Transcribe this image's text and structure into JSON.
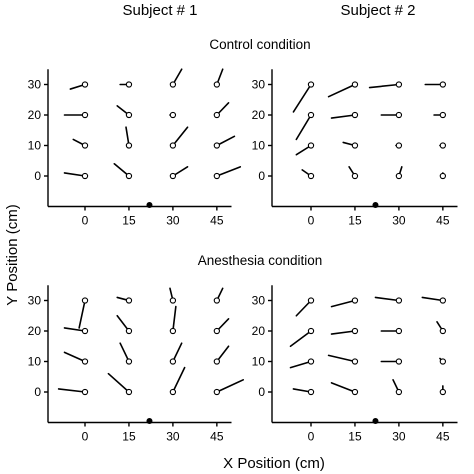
{
  "subjects": [
    "Subject # 1",
    "Subject # 2"
  ],
  "conditions": [
    "Control condition",
    "Anesthesia condition"
  ],
  "x_label": "X Position (cm)",
  "y_label": "Y Position (cm)",
  "x_ticks": [
    "0",
    "15",
    "30",
    "45"
  ],
  "y_ticks": [
    "0",
    "10",
    "20",
    "30"
  ],
  "chart_data": {
    "type": "scatter",
    "description_note": "",
    "x_positions_cm": [
      0,
      15,
      30,
      45
    ],
    "y_positions_cm": [
      0,
      10,
      20,
      30
    ],
    "xlim": [
      -20,
      50
    ],
    "ylim": [
      -10,
      35
    ],
    "speaker_position_cm": [
      22,
      -9
    ],
    "panels": [
      {
        "subject": "Subject # 1",
        "condition": "Control condition",
        "points": [
          {
            "x": 0,
            "y": 30,
            "dx": -5,
            "dy": -1.5
          },
          {
            "x": 15,
            "y": 30,
            "dx": -3,
            "dy": 0
          },
          {
            "x": 30,
            "y": 30,
            "dx": 3,
            "dy": 5
          },
          {
            "x": 45,
            "y": 30,
            "dx": 2,
            "dy": 5
          },
          {
            "x": 0,
            "y": 20,
            "dx": -7,
            "dy": 0
          },
          {
            "x": 15,
            "y": 20,
            "dx": -4,
            "dy": 3
          },
          {
            "x": 30,
            "y": 20,
            "dx": -1,
            "dy": 0
          },
          {
            "x": 45,
            "y": 20,
            "dx": 4,
            "dy": 4
          },
          {
            "x": 0,
            "y": 10,
            "dx": -4,
            "dy": 2
          },
          {
            "x": 15,
            "y": 10,
            "dx": -1,
            "dy": 6
          },
          {
            "x": 30,
            "y": 10,
            "dx": 5,
            "dy": 6
          },
          {
            "x": 45,
            "y": 10,
            "dx": 6,
            "dy": 3
          },
          {
            "x": 0,
            "y": 0,
            "dx": -7,
            "dy": 1
          },
          {
            "x": 15,
            "y": 0,
            "dx": -5,
            "dy": 4
          },
          {
            "x": 30,
            "y": 0,
            "dx": 5,
            "dy": 3
          },
          {
            "x": 45,
            "y": 0,
            "dx": 8,
            "dy": 3
          }
        ]
      },
      {
        "subject": "Subject # 2",
        "condition": "Control condition",
        "points": [
          {
            "x": 0,
            "y": 30,
            "dx": -6,
            "dy": -9
          },
          {
            "x": 15,
            "y": 30,
            "dx": -9,
            "dy": -4
          },
          {
            "x": 30,
            "y": 30,
            "dx": -10,
            "dy": -1
          },
          {
            "x": 45,
            "y": 30,
            "dx": -6,
            "dy": 0
          },
          {
            "x": 0,
            "y": 20,
            "dx": -5,
            "dy": -8
          },
          {
            "x": 15,
            "y": 20,
            "dx": -8,
            "dy": -1
          },
          {
            "x": 30,
            "y": 20,
            "dx": -6,
            "dy": 0
          },
          {
            "x": 45,
            "y": 20,
            "dx": -3,
            "dy": 0
          },
          {
            "x": 0,
            "y": 10,
            "dx": -5,
            "dy": -3
          },
          {
            "x": 15,
            "y": 10,
            "dx": -4,
            "dy": 1
          },
          {
            "x": 30,
            "y": 10,
            "dx": -1,
            "dy": 0
          },
          {
            "x": 45,
            "y": 10,
            "dx": -1,
            "dy": 0
          },
          {
            "x": 0,
            "y": 0,
            "dx": -3,
            "dy": 2
          },
          {
            "x": 15,
            "y": 0,
            "dx": -2,
            "dy": 3
          },
          {
            "x": 30,
            "y": 0,
            "dx": 1,
            "dy": 3
          },
          {
            "x": 45,
            "y": 0,
            "dx": 0,
            "dy": 1
          }
        ]
      },
      {
        "subject": "Subject # 1",
        "condition": "Anesthesia condition",
        "points": [
          {
            "x": 0,
            "y": 30,
            "dx": -2,
            "dy": -9
          },
          {
            "x": 15,
            "y": 30,
            "dx": -4,
            "dy": 1
          },
          {
            "x": 30,
            "y": 30,
            "dx": -1,
            "dy": 4
          },
          {
            "x": 45,
            "y": 30,
            "dx": 2,
            "dy": 4
          },
          {
            "x": 0,
            "y": 20,
            "dx": -7,
            "dy": 1
          },
          {
            "x": 15,
            "y": 20,
            "dx": -4,
            "dy": 5
          },
          {
            "x": 30,
            "y": 20,
            "dx": 1,
            "dy": 8
          },
          {
            "x": 45,
            "y": 20,
            "dx": 4,
            "dy": 4
          },
          {
            "x": 0,
            "y": 10,
            "dx": -7,
            "dy": 3
          },
          {
            "x": 15,
            "y": 10,
            "dx": -3,
            "dy": 6
          },
          {
            "x": 30,
            "y": 10,
            "dx": 3,
            "dy": 6
          },
          {
            "x": 45,
            "y": 10,
            "dx": 4,
            "dy": 5
          },
          {
            "x": 0,
            "y": 0,
            "dx": -9,
            "dy": 1
          },
          {
            "x": 15,
            "y": 0,
            "dx": -7,
            "dy": 6
          },
          {
            "x": 30,
            "y": 0,
            "dx": 4,
            "dy": 8
          },
          {
            "x": 45,
            "y": 0,
            "dx": 9,
            "dy": 4
          }
        ]
      },
      {
        "subject": "Subject # 2",
        "condition": "Anesthesia condition",
        "points": [
          {
            "x": 0,
            "y": 30,
            "dx": -5,
            "dy": -5
          },
          {
            "x": 15,
            "y": 30,
            "dx": -8,
            "dy": -2
          },
          {
            "x": 30,
            "y": 30,
            "dx": -8,
            "dy": 1
          },
          {
            "x": 45,
            "y": 30,
            "dx": -7,
            "dy": 1
          },
          {
            "x": 0,
            "y": 20,
            "dx": -7,
            "dy": -5
          },
          {
            "x": 15,
            "y": 20,
            "dx": -8,
            "dy": -1
          },
          {
            "x": 30,
            "y": 20,
            "dx": -6,
            "dy": 0
          },
          {
            "x": 45,
            "y": 20,
            "dx": -2,
            "dy": 3
          },
          {
            "x": 0,
            "y": 10,
            "dx": -7,
            "dy": -2
          },
          {
            "x": 15,
            "y": 10,
            "dx": -9,
            "dy": 2
          },
          {
            "x": 30,
            "y": 10,
            "dx": -6,
            "dy": 0
          },
          {
            "x": 45,
            "y": 10,
            "dx": -1,
            "dy": 1
          },
          {
            "x": 0,
            "y": 0,
            "dx": -6,
            "dy": 1
          },
          {
            "x": 15,
            "y": 0,
            "dx": -8,
            "dy": 3
          },
          {
            "x": 30,
            "y": 0,
            "dx": -2,
            "dy": 4
          },
          {
            "x": 45,
            "y": 0,
            "dx": 0,
            "dy": 2
          }
        ]
      }
    ]
  }
}
